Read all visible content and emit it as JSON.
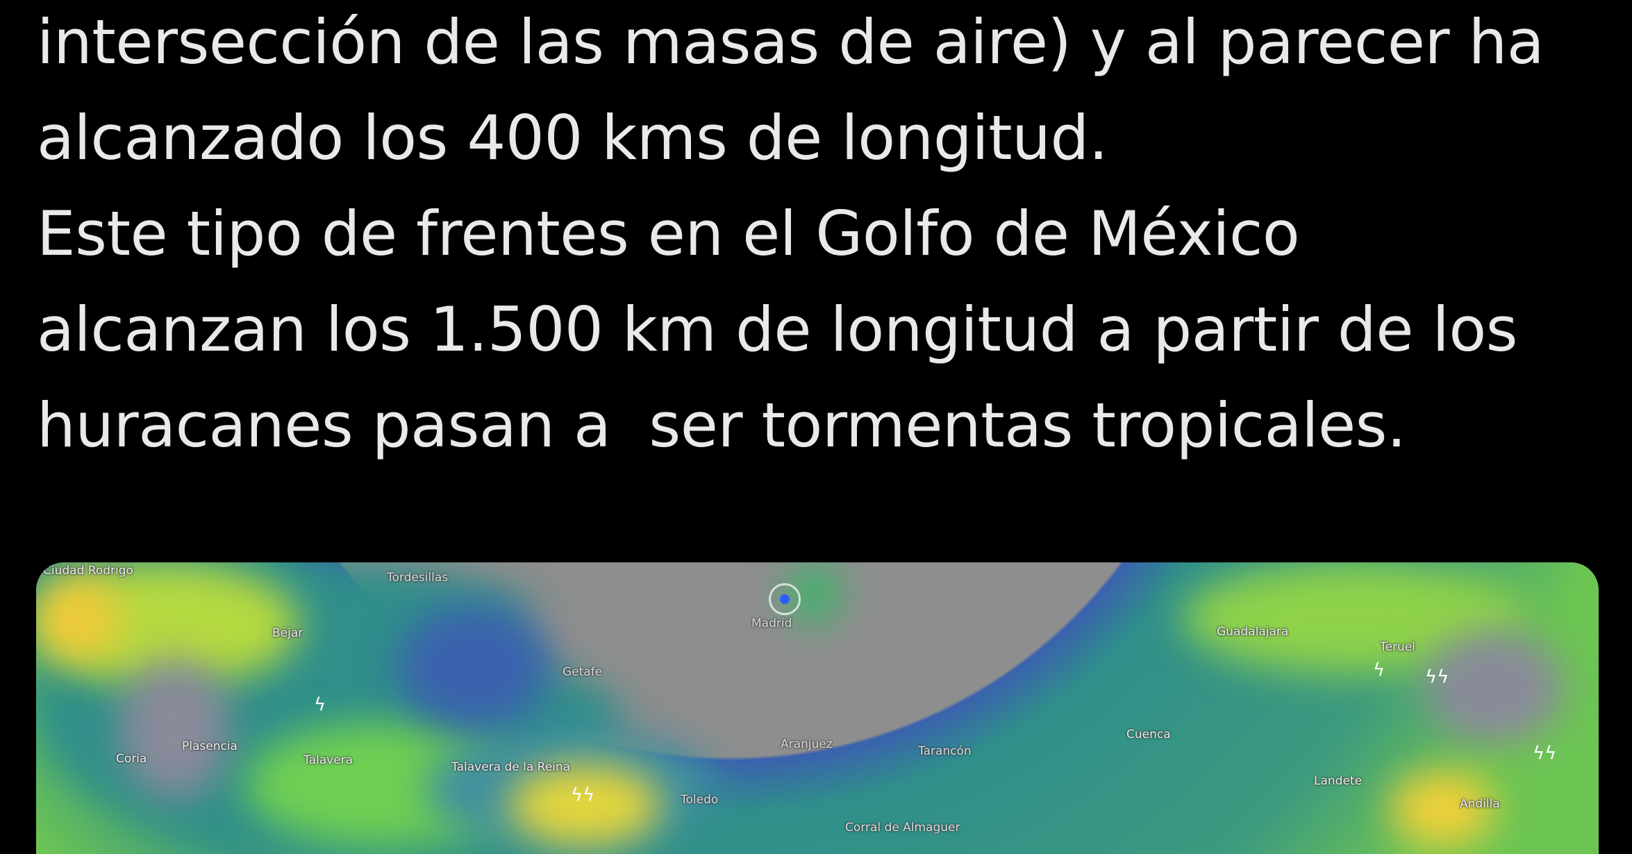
{
  "tweet": {
    "lines": [
      "intersección de las masas de aire) y al parecer ha",
      "alcanzado los 400 kms de longitud.",
      "Este tipo de frentes en el Golfo de México",
      "alcanzan los 1.500 km de longitud a partir de los",
      "huracanes pasan a  ser tormentas tropicales."
    ]
  },
  "map": {
    "type": "weather-radar",
    "labels": [
      "Ciudad Rodrigo",
      "Tordesillas",
      "Béjar",
      "Coria",
      "Plasencia",
      "Talavera",
      "Talavera de la Reina",
      "Toledo",
      "Madrid",
      "Getafe",
      "Aranjuez",
      "Tarancón",
      "Corral de Almaguer",
      "Cuenca",
      "Guadalajara",
      "Teruel",
      "Landete",
      "Andilla"
    ],
    "location_icon": "location-pin-icon",
    "lightning_icon": "lightning-icon",
    "colors": {
      "base": "#8e8e8e",
      "light_rain": "#3c5fb0",
      "moderate": "#2a8f8a",
      "heavy": "#7fd14a",
      "intense": "#f2d43a"
    }
  }
}
